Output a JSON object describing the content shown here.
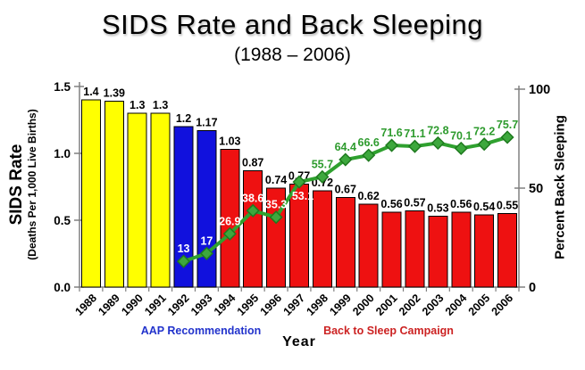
{
  "title": "SIDS Rate and Back Sleeping",
  "subtitle": "(1988 – 2006)",
  "colors": {
    "bar_yellow": "#FFFF00",
    "bar_blue": "#1111DD",
    "bar_red": "#EE1111",
    "bar_outline": "#000000",
    "line_green": "#2FA12F",
    "marker_fill": "#3DA83D",
    "marker_stroke": "#1E7A1E",
    "label_green": "#2E9B2E",
    "label_white": "#FFFFFF",
    "axis_gray": "#808080",
    "text_black": "#000000",
    "annotation_blue": "#2233CC",
    "annotation_red": "#CC2222"
  },
  "axes": {
    "left": {
      "title": "SIDS Rate",
      "subtitle": "(Deaths Per 1,000 Live Births)",
      "tick_labels": [
        "0.0",
        "0.5",
        "1.0",
        "1.5"
      ],
      "tick_values": [
        0,
        0.5,
        1.0,
        1.5
      ]
    },
    "right": {
      "title": "Percent Back Sleeping",
      "tick_labels": [
        "0",
        "50",
        "100"
      ],
      "tick_values": [
        0,
        50,
        100
      ]
    },
    "x": {
      "title": "Year"
    }
  },
  "annotations": {
    "aap": {
      "text": "AAP Recommendation"
    },
    "back_to_sleep": {
      "text": "Back to Sleep Campaign"
    }
  },
  "chart_data": {
    "type": "bar+line",
    "grid": false,
    "legend": "none",
    "categories": [
      "1988",
      "1989",
      "1990",
      "1991",
      "1992",
      "1993",
      "1994",
      "1995",
      "1996",
      "1997",
      "1998",
      "1999",
      "2000",
      "2001",
      "2002",
      "2003",
      "2004",
      "2005",
      "2006"
    ],
    "ylim_left": [
      0,
      1.5
    ],
    "ylim_right": [
      0,
      100
    ],
    "series": [
      {
        "name": "SIDS Rate",
        "type": "bar",
        "axis": "left",
        "values": [
          1.4,
          1.39,
          1.3,
          1.3,
          1.2,
          1.17,
          1.03,
          0.87,
          0.74,
          0.77,
          0.72,
          0.67,
          0.62,
          0.56,
          0.57,
          0.53,
          0.56,
          0.54,
          0.55
        ],
        "bar_color_keys": [
          "bar_yellow",
          "bar_yellow",
          "bar_yellow",
          "bar_yellow",
          "bar_blue",
          "bar_blue",
          "bar_red",
          "bar_red",
          "bar_red",
          "bar_red",
          "bar_red",
          "bar_red",
          "bar_red",
          "bar_red",
          "bar_red",
          "bar_red",
          "bar_red",
          "bar_red",
          "bar_red"
        ]
      },
      {
        "name": "Percent Back Sleeping",
        "type": "line",
        "axis": "right",
        "start_category_index": 4,
        "values": [
          13,
          17,
          26.9,
          38.6,
          35.3,
          53.1,
          55.7,
          64.4,
          66.6,
          71.6,
          71.1,
          72.8,
          70.1,
          72.2,
          75.7
        ],
        "label_color_keys": [
          "label_white",
          "label_white",
          "label_white",
          "label_white",
          "label_white",
          "label_white",
          "label_green",
          "label_green",
          "label_green",
          "label_green",
          "label_green",
          "label_green",
          "label_green",
          "label_green",
          "label_green"
        ],
        "label_positions": [
          "above",
          "above",
          "above",
          "above",
          "above",
          "below",
          "above",
          "above",
          "above",
          "above",
          "above",
          "above",
          "above",
          "above",
          "above"
        ]
      }
    ]
  }
}
